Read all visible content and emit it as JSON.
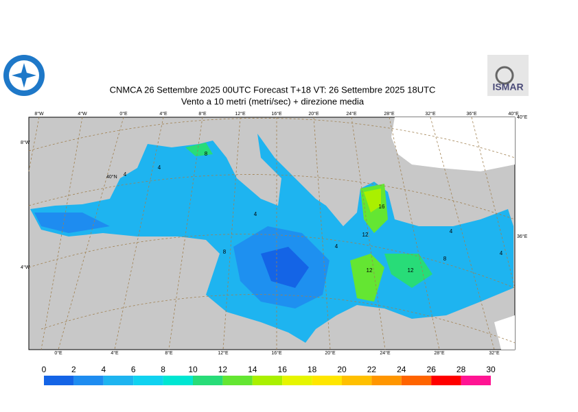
{
  "header": {
    "title": "CNMCA 26 Settembre 2025 00UTC Forecast T+18 VT: 26 Settembre 2025 18UTC",
    "subtitle": "Vento a 10 metri (metri/sec) + direzione media"
  },
  "logos": {
    "right": "ISMAR"
  },
  "map": {
    "top_labels": [
      "8°W",
      "4°W",
      "0°E",
      "4°E",
      "8°E",
      "12°E",
      "16°E",
      "20°E",
      "24°E",
      "28°E",
      "32°E",
      "36°E",
      "40°E"
    ],
    "bottom_labels": [
      "0°E",
      "4°E",
      "8°E",
      "12°E",
      "16°E",
      "20°E",
      "24°E",
      "28°E",
      "32°E"
    ],
    "left_labels": [
      "8°W",
      "40°N",
      "4°W"
    ],
    "right_labels": [
      "40°E",
      "36°E"
    ],
    "contour_labels": [
      8,
      4,
      4,
      4,
      8,
      4,
      12,
      16,
      12,
      12,
      8,
      4,
      4
    ]
  },
  "colorbar": {
    "ticks": [
      0,
      2,
      4,
      6,
      8,
      10,
      12,
      14,
      16,
      18,
      20,
      22,
      24,
      26,
      28,
      30
    ],
    "colors": [
      "#1464e6",
      "#1e8cf0",
      "#1eb4f0",
      "#10d2f0",
      "#00e6d2",
      "#28dc78",
      "#64e632",
      "#aaf000",
      "#e6f500",
      "#ffe600",
      "#ffc000",
      "#ff9600",
      "#ff6400",
      "#ff0000",
      "#ff1493"
    ]
  }
}
